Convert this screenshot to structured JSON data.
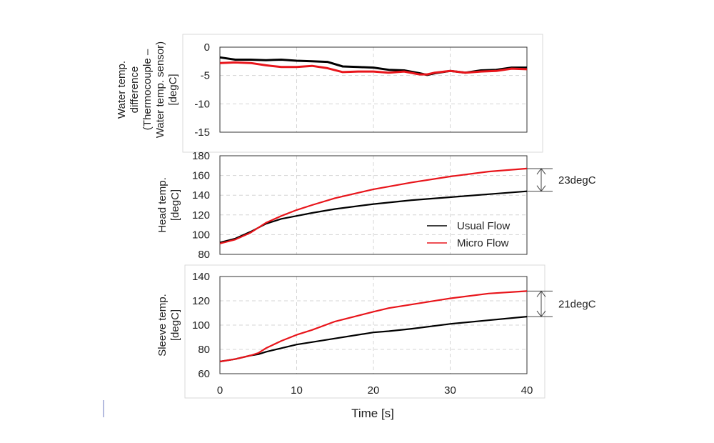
{
  "colors": {
    "usual": "#000000",
    "micro": "#e8151b",
    "grid": "#d4d4d4",
    "frame": "#333333"
  },
  "chart_data": {
    "type": "line",
    "xlabel": "Time [s]",
    "xlim": [
      0,
      40
    ],
    "xticks": [
      "0",
      "10",
      "20",
      "30",
      "40"
    ],
    "xtick_values": [
      0,
      10,
      20,
      30,
      40
    ],
    "legend": {
      "placement": "inside-lower-right of head panel",
      "entries": [
        "Usual Flow",
        "Micro Flow"
      ]
    },
    "panels": [
      {
        "id": "water",
        "ylabel_lines": [
          "Water temp.",
          "difference",
          "(Thermocouple –",
          "Water temp. sensor)",
          "[degC]"
        ],
        "ylim": [
          -15,
          0
        ],
        "yticks": [
          "0",
          "-5",
          "-10",
          "-15"
        ],
        "ytick_values": [
          0,
          -5,
          -10,
          -15
        ],
        "x": [
          0,
          2,
          4,
          6,
          8,
          10,
          12,
          14,
          16,
          18,
          20,
          22,
          24,
          26,
          27,
          28,
          30,
          32,
          34,
          36,
          38,
          40
        ],
        "series": [
          {
            "name": "Usual Flow",
            "values": [
              -1.8,
              -2.2,
              -2.2,
              -2.3,
              -2.2,
              -2.4,
              -2.5,
              -2.6,
              -3.4,
              -3.5,
              -3.6,
              -4.0,
              -4.1,
              -4.6,
              -4.9,
              -4.6,
              -4.2,
              -4.5,
              -4.1,
              -4.0,
              -3.6,
              -3.6
            ]
          },
          {
            "name": "Micro Flow",
            "values": [
              -2.8,
              -2.7,
              -2.8,
              -3.2,
              -3.5,
              -3.5,
              -3.3,
              -3.7,
              -4.4,
              -4.3,
              -4.3,
              -4.5,
              -4.3,
              -4.8,
              -4.8,
              -4.5,
              -4.2,
              -4.5,
              -4.3,
              -4.2,
              -3.8,
              -3.9
            ]
          }
        ]
      },
      {
        "id": "head",
        "ylabel_lines": [
          "Head temp.",
          "[degC]"
        ],
        "ylim": [
          80,
          180
        ],
        "yticks": [
          "180",
          "160",
          "140",
          "120",
          "100",
          "80"
        ],
        "ytick_values": [
          180,
          160,
          140,
          120,
          100,
          80
        ],
        "x": [
          0,
          2,
          4,
          6,
          8,
          10,
          12,
          15,
          20,
          25,
          30,
          35,
          40
        ],
        "series": [
          {
            "name": "Usual Flow",
            "values": [
              92,
              96,
              103,
              111,
              116,
              119,
              122,
              126,
              131,
              135,
              138,
              141,
              144
            ]
          },
          {
            "name": "Micro Flow",
            "values": [
              91,
              95,
              102,
              112,
              119,
              125,
              130,
              137,
              146,
              153,
              159,
              164,
              167
            ]
          }
        ],
        "annotation": {
          "label": "23degC",
          "from": 144,
          "to": 167
        }
      },
      {
        "id": "sleeve",
        "ylabel_lines": [
          "Sleeve temp.",
          "[degC]"
        ],
        "ylim": [
          60,
          140
        ],
        "yticks": [
          "140",
          "120",
          "100",
          "80",
          "60"
        ],
        "ytick_values": [
          140,
          120,
          100,
          80,
          60
        ],
        "x": [
          0,
          2,
          4,
          5,
          6,
          8,
          10,
          12,
          15,
          20,
          22,
          25,
          30,
          35,
          40
        ],
        "series": [
          {
            "name": "Usual Flow",
            "values": [
              70,
              72,
              75,
              76,
              78,
              81,
              84,
              86,
              89,
              94,
              95,
              97,
              101,
              104,
              107
            ]
          },
          {
            "name": "Micro Flow",
            "values": [
              70,
              72,
              75,
              77,
              81,
              87,
              92,
              96,
              103,
              111,
              114,
              117,
              122,
              126,
              128
            ]
          }
        ],
        "annotation": {
          "label": "21degC",
          "from": 107,
          "to": 128
        }
      }
    ]
  }
}
